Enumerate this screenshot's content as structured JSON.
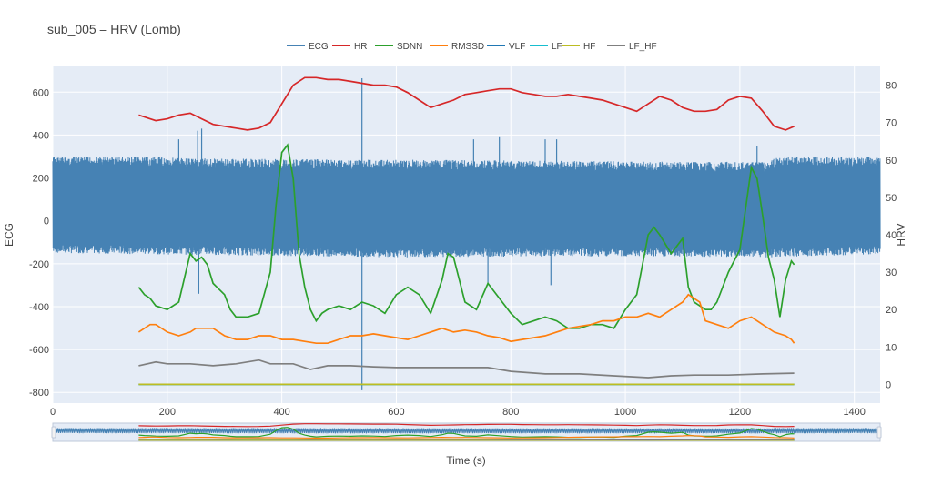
{
  "chart_data": {
    "type": "line",
    "title": "sub_005 – HRV (Lomb)",
    "xlabel": "Time (s)",
    "ylabel_left": "ECG",
    "ylabel_right": "HRV",
    "xlim": [
      0,
      1445
    ],
    "ylim_left": [
      -850,
      720
    ],
    "ylim_right": [
      -5,
      85
    ],
    "x_ticks": [
      0,
      200,
      400,
      600,
      800,
      1000,
      1200,
      1400
    ],
    "y_left_ticks": [
      -800,
      -600,
      -400,
      -200,
      0,
      200,
      400,
      600
    ],
    "y_right_ticks": [
      0,
      10,
      20,
      30,
      40,
      50,
      60,
      70,
      80
    ],
    "legend_position": "top-center",
    "grid": true,
    "range_slider": true,
    "colors": {
      "background": "#e5ecf6",
      "ECG": "#4682b4",
      "HR": "#d62728",
      "SDNN": "#2ca02c",
      "RMSSD": "#ff7f0e",
      "VLF": "#1f77b4",
      "LF": "#17becf",
      "HF": "#bcbd22",
      "LF_HF": "#7f7f7f"
    },
    "ecg": {
      "name": "ECG",
      "axis": "left",
      "x_range": [
        0,
        1445
      ],
      "upper": [
        [
          0,
          300
        ],
        [
          150,
          300
        ],
        [
          300,
          290
        ],
        [
          600,
          285
        ],
        [
          900,
          280
        ],
        [
          1100,
          275
        ],
        [
          1250,
          275
        ],
        [
          1265,
          300
        ],
        [
          1445,
          300
        ]
      ],
      "lower": [
        [
          0,
          -150
        ],
        [
          300,
          -160
        ],
        [
          600,
          -170
        ],
        [
          900,
          -165
        ],
        [
          1250,
          -170
        ],
        [
          1445,
          -155
        ]
      ],
      "spikes": [
        [
          253,
          420
        ],
        [
          255,
          -340
        ],
        [
          260,
          430
        ],
        [
          540,
          665
        ],
        [
          540,
          -790
        ],
        [
          735,
          380
        ],
        [
          780,
          390
        ],
        [
          860,
          380
        ],
        [
          880,
          380
        ],
        [
          870,
          -300
        ],
        [
          760,
          -300
        ],
        [
          220,
          380
        ],
        [
          1230,
          350
        ]
      ]
    },
    "series": [
      {
        "name": "HR",
        "axis": "right",
        "x": [
          150,
          170,
          180,
          200,
          220,
          240,
          260,
          280,
          300,
          320,
          340,
          360,
          380,
          400,
          420,
          440,
          460,
          480,
          500,
          520,
          540,
          560,
          580,
          600,
          620,
          640,
          660,
          680,
          700,
          720,
          740,
          760,
          780,
          800,
          820,
          840,
          860,
          880,
          900,
          920,
          940,
          960,
          980,
          1000,
          1020,
          1040,
          1060,
          1080,
          1100,
          1120,
          1140,
          1160,
          1180,
          1200,
          1220,
          1240,
          1260,
          1280,
          1295
        ],
        "values": [
          72,
          71,
          70.5,
          71,
          72,
          72.5,
          71,
          69.5,
          69,
          68.5,
          68,
          68.5,
          70,
          75,
          80,
          82,
          82,
          81.5,
          81.5,
          81,
          80.5,
          80,
          80,
          79.5,
          78,
          76,
          74,
          75,
          76,
          77.5,
          78,
          78.5,
          79,
          79,
          78,
          77.5,
          77,
          77,
          77.5,
          77,
          76.5,
          76,
          75,
          74,
          73,
          75,
          77,
          76,
          74,
          73,
          73,
          73.5,
          76,
          77,
          76.5,
          73,
          69,
          68,
          69
        ]
      },
      {
        "name": "SDNN",
        "axis": "right",
        "x": [
          150,
          160,
          170,
          180,
          200,
          220,
          240,
          250,
          260,
          270,
          280,
          300,
          310,
          320,
          340,
          360,
          380,
          390,
          400,
          410,
          420,
          430,
          440,
          450,
          460,
          470,
          480,
          500,
          520,
          540,
          560,
          580,
          600,
          620,
          640,
          660,
          680,
          690,
          700,
          710,
          720,
          740,
          760,
          780,
          800,
          820,
          840,
          860,
          880,
          900,
          920,
          940,
          960,
          980,
          1000,
          1020,
          1040,
          1050,
          1060,
          1080,
          1100,
          1110,
          1120,
          1130,
          1140,
          1150,
          1160,
          1180,
          1200,
          1220,
          1230,
          1240,
          1250,
          1260,
          1270,
          1280,
          1290,
          1295
        ],
        "values": [
          26,
          24,
          23,
          21,
          20,
          22,
          35,
          33,
          34,
          32,
          27,
          24,
          20,
          18,
          18,
          19,
          30,
          48,
          62,
          64,
          55,
          35,
          26,
          20,
          17,
          19,
          20,
          21,
          20,
          22,
          21,
          19,
          24,
          26,
          24,
          19,
          28,
          35,
          34,
          28,
          22,
          20,
          27,
          23,
          19,
          16,
          17,
          18,
          17,
          15,
          15,
          16,
          16,
          15,
          20,
          24,
          40,
          42,
          40,
          35,
          39,
          26,
          22,
          21,
          20,
          20,
          22,
          30,
          36,
          58,
          55,
          45,
          34,
          28,
          18,
          28,
          33,
          32
        ]
      },
      {
        "name": "RMSSD",
        "axis": "right",
        "x": [
          150,
          160,
          170,
          180,
          200,
          220,
          240,
          250,
          260,
          280,
          300,
          320,
          340,
          360,
          380,
          400,
          420,
          440,
          460,
          480,
          500,
          520,
          540,
          560,
          580,
          600,
          620,
          640,
          660,
          680,
          700,
          720,
          740,
          760,
          780,
          800,
          820,
          840,
          860,
          880,
          900,
          920,
          940,
          960,
          980,
          1000,
          1020,
          1040,
          1060,
          1080,
          1100,
          1110,
          1120,
          1130,
          1140,
          1160,
          1180,
          1200,
          1220,
          1240,
          1260,
          1280,
          1290,
          1295
        ],
        "values": [
          14,
          15,
          16,
          16,
          14,
          13,
          14,
          15,
          15,
          15,
          13,
          12,
          12,
          13,
          13,
          12,
          12,
          11.5,
          11,
          11,
          12,
          13,
          13,
          13.5,
          13,
          12.5,
          12,
          13,
          14,
          15,
          14,
          14.5,
          14,
          13,
          12.5,
          11.5,
          12,
          12.5,
          13,
          14,
          15,
          15.5,
          16,
          17,
          17,
          18,
          18,
          19,
          18,
          20,
          22,
          24,
          23,
          22,
          17,
          16,
          15,
          17,
          18,
          16,
          14,
          13,
          12,
          11
        ]
      },
      {
        "name": "VLF",
        "axis": "right",
        "x": [
          150,
          1295
        ],
        "values": [
          0,
          0
        ]
      },
      {
        "name": "LF",
        "axis": "right",
        "x": [
          150,
          1295
        ],
        "values": [
          0,
          0
        ]
      },
      {
        "name": "HF",
        "axis": "right",
        "x": [
          150,
          1295
        ],
        "values": [
          0,
          0
        ]
      },
      {
        "name": "LF_HF",
        "axis": "right",
        "x": [
          150,
          180,
          200,
          240,
          280,
          320,
          360,
          380,
          420,
          450,
          480,
          520,
          560,
          600,
          640,
          700,
          760,
          800,
          860,
          920,
          980,
          1040,
          1080,
          1120,
          1180,
          1240,
          1295
        ],
        "values": [
          5,
          6,
          5.5,
          5.5,
          5,
          5.5,
          6.5,
          5.5,
          5.5,
          4,
          5,
          5,
          4.7,
          4.5,
          4.5,
          4.5,
          4.5,
          3.5,
          2.8,
          2.8,
          2.3,
          1.8,
          2.3,
          2.5,
          2.5,
          2.8,
          3
        ]
      }
    ]
  }
}
